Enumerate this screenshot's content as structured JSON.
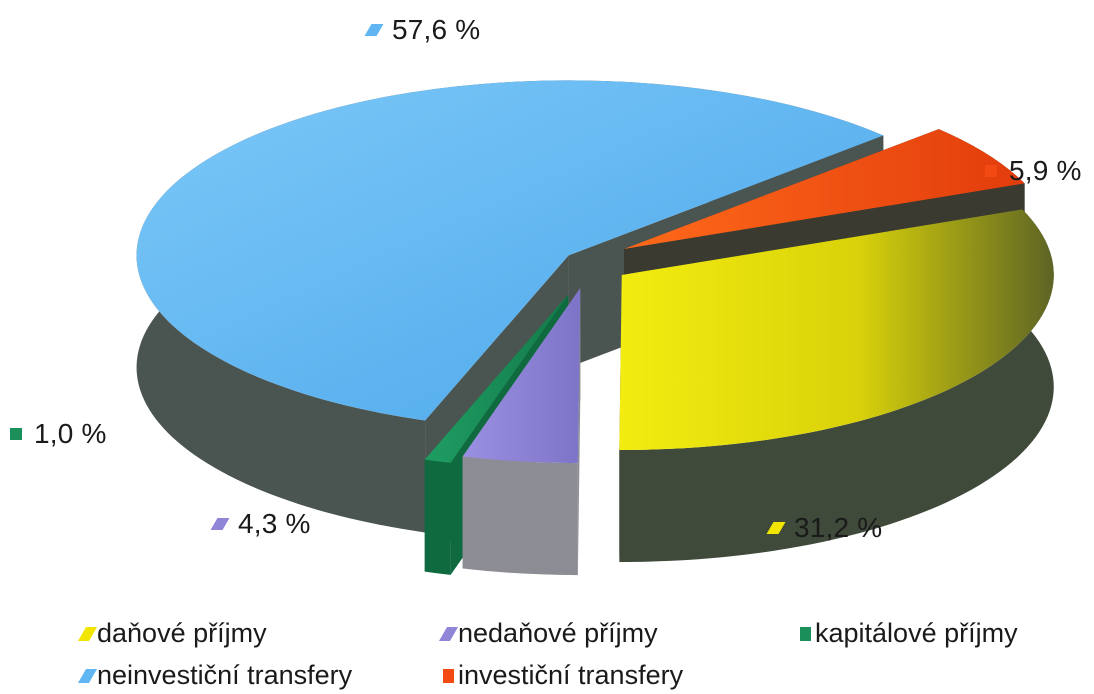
{
  "chart_data": {
    "type": "pie",
    "title": "",
    "slices": [
      {
        "name": "daňové příjmy",
        "value": 31.2,
        "label": "31,2 %",
        "color": "#f2e600"
      },
      {
        "name": "nedaňové příjmy",
        "value": 4.3,
        "label": "4,3 %",
        "color": "#8f86d8"
      },
      {
        "name": "kapitálové příjmy",
        "value": 1.0,
        "label": "1,0 %",
        "color": "#1a8f5a"
      },
      {
        "name": "neinvestiční transfery",
        "value": 57.6,
        "label": "57,6 %",
        "color": "#5fb6f2"
      },
      {
        "name": "investiční transfery",
        "value": 5.9,
        "label": "5,9 %",
        "color": "#f24a12"
      }
    ],
    "style": "3d-exploded",
    "legend_position": "bottom"
  }
}
